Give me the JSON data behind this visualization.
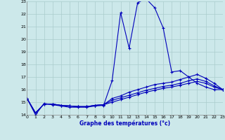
{
  "title": "Graphe des températures (°c)",
  "bg_color": "#cce8ea",
  "grid_color": "#aacccc",
  "line_color": "#0000bb",
  "xlim": [
    0,
    23
  ],
  "ylim": [
    14,
    23
  ],
  "xticks": [
    0,
    1,
    2,
    3,
    4,
    5,
    6,
    7,
    8,
    9,
    10,
    11,
    12,
    13,
    14,
    15,
    16,
    17,
    18,
    19,
    20,
    21,
    22,
    23
  ],
  "yticks": [
    14,
    15,
    16,
    17,
    18,
    19,
    20,
    21,
    22,
    23
  ],
  "curve_main": [
    15.3,
    14.0,
    14.9,
    14.8,
    14.7,
    14.6,
    14.6,
    14.6,
    14.7,
    14.75,
    16.7,
    22.1,
    19.3,
    22.9,
    23.2,
    22.5,
    20.9,
    17.4,
    17.5,
    17.0,
    16.5,
    16.2,
    16.0,
    16.0
  ],
  "curve_hi": [
    15.3,
    14.15,
    14.85,
    14.85,
    14.75,
    14.7,
    14.65,
    14.65,
    14.75,
    14.8,
    15.3,
    15.5,
    15.8,
    16.0,
    16.2,
    16.4,
    16.5,
    16.6,
    16.8,
    17.0,
    17.2,
    16.9,
    16.5,
    16.0
  ],
  "curve_mid": [
    15.3,
    14.15,
    14.85,
    14.85,
    14.75,
    14.7,
    14.65,
    14.65,
    14.75,
    14.8,
    15.15,
    15.35,
    15.55,
    15.75,
    15.95,
    16.1,
    16.25,
    16.35,
    16.5,
    16.7,
    16.85,
    16.65,
    16.3,
    16.0
  ],
  "curve_lo": [
    15.3,
    14.15,
    14.85,
    14.85,
    14.75,
    14.7,
    14.65,
    14.65,
    14.75,
    14.8,
    15.0,
    15.2,
    15.4,
    15.6,
    15.8,
    15.95,
    16.1,
    16.2,
    16.35,
    16.5,
    16.65,
    16.5,
    16.2,
    16.0
  ]
}
